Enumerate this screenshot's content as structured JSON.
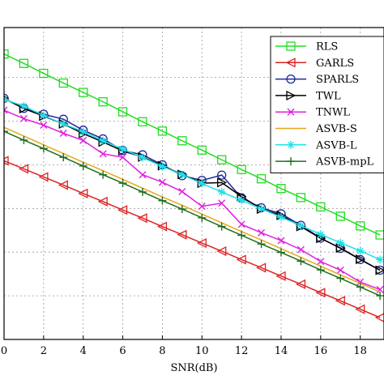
{
  "chart_data": {
    "type": "line",
    "title": "",
    "xlabel": "SNR(dB)",
    "ylabel": "",
    "xlim": [
      0,
      19.2
    ],
    "ylim": [
      0,
      1
    ],
    "x_ticks": [
      0,
      2,
      4,
      6,
      8,
      10,
      12,
      14,
      16,
      18
    ],
    "grid": true,
    "legend_position": "top-right",
    "x": [
      0,
      1,
      2,
      3,
      4,
      5,
      6,
      7,
      8,
      9,
      10,
      11,
      12,
      13,
      14,
      15,
      16,
      17,
      18,
      19
    ],
    "series": [
      {
        "name": "RLS",
        "color": "#22dd22",
        "marker": "square",
        "values": [
          0.915,
          0.885,
          0.853,
          0.822,
          0.792,
          0.762,
          0.73,
          0.698,
          0.668,
          0.637,
          0.607,
          0.576,
          0.545,
          0.515,
          0.484,
          0.455,
          0.425,
          0.395,
          0.364,
          0.335
        ]
      },
      {
        "name": "GARLS",
        "color": "#dd2222",
        "marker": "triangle-left",
        "values": [
          0.573,
          0.547,
          0.521,
          0.495,
          0.468,
          0.442,
          0.415,
          0.389,
          0.362,
          0.336,
          0.309,
          0.283,
          0.256,
          0.23,
          0.203,
          0.177,
          0.15,
          0.124,
          0.097,
          0.07
        ]
      },
      {
        "name": "SPARLS",
        "color": "#1f2a9a",
        "marker": "circle",
        "values": [
          0.773,
          0.741,
          0.722,
          0.706,
          0.671,
          0.643,
          0.606,
          0.592,
          0.56,
          0.525,
          0.51,
          0.527,
          0.454,
          0.422,
          0.403,
          0.366,
          0.325,
          0.292,
          0.256,
          0.222
        ]
      },
      {
        "name": "TWL",
        "color": "#000000",
        "marker": "triangle-right",
        "values": [
          0.773,
          0.74,
          0.716,
          0.691,
          0.66,
          0.633,
          0.604,
          0.585,
          0.557,
          0.529,
          0.501,
          0.503,
          0.458,
          0.418,
          0.398,
          0.362,
          0.324,
          0.293,
          0.257,
          0.222
        ]
      },
      {
        "name": "TNWL",
        "color": "#e020e0",
        "marker": "x",
        "values": [
          0.735,
          0.708,
          0.687,
          0.661,
          0.638,
          0.595,
          0.584,
          0.528,
          0.504,
          0.474,
          0.427,
          0.437,
          0.369,
          0.342,
          0.317,
          0.288,
          0.25,
          0.222,
          0.184,
          0.16
        ]
      },
      {
        "name": "ASVB-S",
        "color": "#e6a817",
        "marker": "none",
        "values": [
          0.68,
          0.652,
          0.624,
          0.596,
          0.568,
          0.541,
          0.513,
          0.485,
          0.457,
          0.43,
          0.402,
          0.374,
          0.346,
          0.319,
          0.291,
          0.263,
          0.235,
          0.207,
          0.18,
          0.152
        ]
      },
      {
        "name": "ASVB-L",
        "color": "#20e0e8",
        "marker": "asterisk",
        "values": [
          0.77,
          0.748,
          0.718,
          0.691,
          0.666,
          0.637,
          0.61,
          0.583,
          0.555,
          0.528,
          0.5,
          0.473,
          0.446,
          0.419,
          0.392,
          0.365,
          0.337,
          0.31,
          0.284,
          0.256
        ]
      },
      {
        "name": "ASVB-mpL",
        "color": "#1f6e1f",
        "marker": "plus",
        "values": [
          0.667,
          0.639,
          0.612,
          0.584,
          0.556,
          0.528,
          0.501,
          0.473,
          0.445,
          0.418,
          0.39,
          0.362,
          0.334,
          0.306,
          0.279,
          0.251,
          0.223,
          0.196,
          0.168,
          0.14
        ]
      }
    ]
  }
}
